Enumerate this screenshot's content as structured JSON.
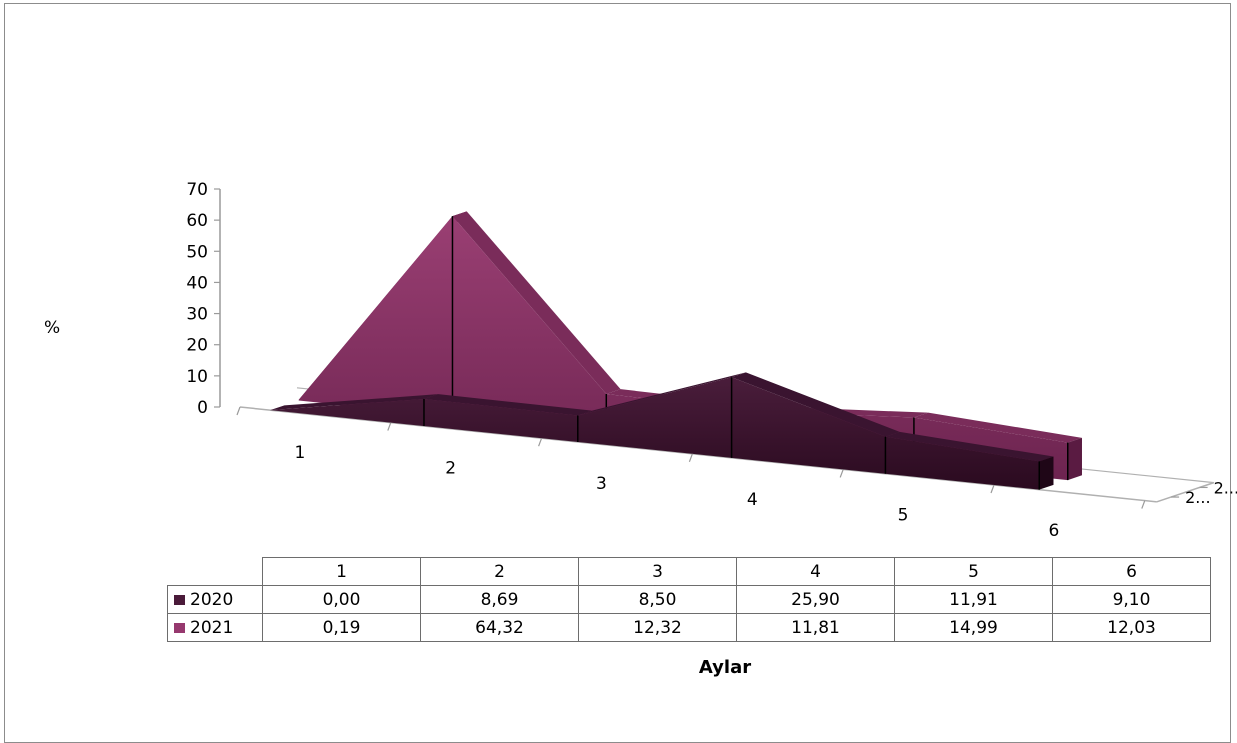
{
  "chart_data": {
    "type": "area",
    "style": "3d",
    "xlabel": "Aylar",
    "ylabel": "%",
    "ylim": [
      0,
      70
    ],
    "yticks": [
      "0",
      "10",
      "20",
      "30",
      "40",
      "50",
      "60",
      "70"
    ],
    "categories": [
      "1",
      "2",
      "3",
      "4",
      "5",
      "6"
    ],
    "series": [
      {
        "name": "2020",
        "color": "#4a1a39",
        "values": [
          0.0,
          8.69,
          8.5,
          25.9,
          11.91,
          9.1
        ],
        "labels": [
          "0,00",
          "8,69",
          "8,50",
          "25,90",
          "11,91",
          "9,10"
        ]
      },
      {
        "name": "2021",
        "color": "#96386e",
        "values": [
          0.19,
          64.32,
          12.32,
          11.81,
          14.99,
          12.03
        ],
        "labels": [
          "0,19",
          "64,32",
          "12,32",
          "11,81",
          "14,99",
          "12,03"
        ]
      }
    ],
    "depth_axis_labels": [
      "2...",
      "2..."
    ],
    "data_table": true,
    "legend": "table"
  }
}
